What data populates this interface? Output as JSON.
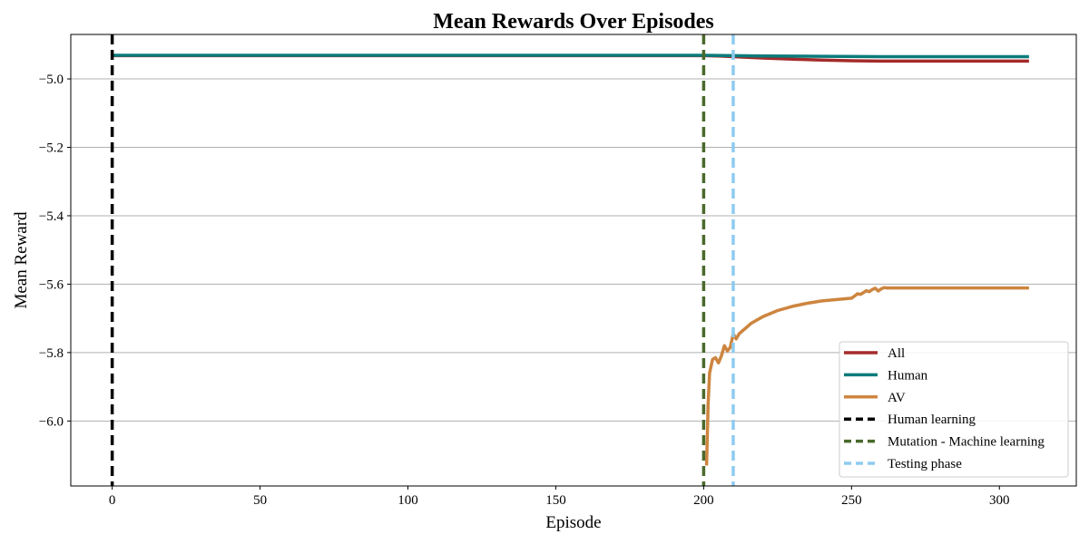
{
  "chart_data": {
    "type": "line",
    "title": "Mean Rewards Over Episodes",
    "xlabel": "Episode",
    "ylabel": "Mean Reward",
    "xlim": [
      -14,
      326
    ],
    "ylim": [
      -6.19,
      -4.87
    ],
    "xticks": [
      0,
      50,
      100,
      150,
      200,
      250,
      300
    ],
    "yticks": [
      -5.0,
      -5.2,
      -5.4,
      -5.6,
      -5.8,
      -6.0
    ],
    "ytick_labels": [
      "−5.0",
      "−5.2",
      "−5.4",
      "−5.6",
      "−5.8",
      "−6.0"
    ],
    "grid": "y",
    "legend_position": "lower-right",
    "series": [
      {
        "name": "All",
        "color": "#a52a2a",
        "x": [
          0,
          100,
          200,
          205,
          210,
          215,
          220,
          230,
          240,
          250,
          260,
          280,
          300,
          310
        ],
        "y": [
          -4.932,
          -4.932,
          -4.932,
          -4.933,
          -4.935,
          -4.937,
          -4.939,
          -4.942,
          -4.945,
          -4.947,
          -4.948,
          -4.948,
          -4.948,
          -4.948
        ]
      },
      {
        "name": "Human",
        "color": "#0b7b7b",
        "x": [
          0,
          100,
          200,
          210,
          220,
          240,
          260,
          280,
          300,
          310
        ],
        "y": [
          -4.931,
          -4.931,
          -4.931,
          -4.932,
          -4.933,
          -4.934,
          -4.935,
          -4.935,
          -4.935,
          -4.935
        ]
      },
      {
        "name": "AV",
        "color": "#cd853f",
        "x": [
          201,
          201.5,
          202,
          203,
          204,
          205,
          206,
          207,
          208,
          209,
          210,
          211,
          212,
          214,
          216,
          218,
          220,
          225,
          230,
          235,
          240,
          245,
          250,
          251,
          252,
          253,
          254,
          255,
          256,
          257,
          258,
          259,
          260,
          261,
          262,
          270,
          280,
          290,
          300,
          310
        ],
        "y": [
          -6.13,
          -5.95,
          -5.86,
          -5.82,
          -5.815,
          -5.83,
          -5.81,
          -5.78,
          -5.795,
          -5.785,
          -5.745,
          -5.76,
          -5.745,
          -5.73,
          -5.715,
          -5.705,
          -5.695,
          -5.677,
          -5.665,
          -5.656,
          -5.649,
          -5.645,
          -5.641,
          -5.635,
          -5.628,
          -5.63,
          -5.625,
          -5.619,
          -5.622,
          -5.616,
          -5.612,
          -5.62,
          -5.614,
          -5.61,
          -5.611,
          -5.611,
          -5.611,
          -5.611,
          -5.611,
          -5.611
        ]
      }
    ],
    "vlines": [
      {
        "name": "Human learning",
        "x": 0,
        "color": "#000000"
      },
      {
        "name": "Mutation - Machine learning",
        "x": 200,
        "color": "#4a6a2c"
      },
      {
        "name": "Testing phase",
        "x": 210,
        "color": "#8ecbf0"
      }
    ]
  }
}
